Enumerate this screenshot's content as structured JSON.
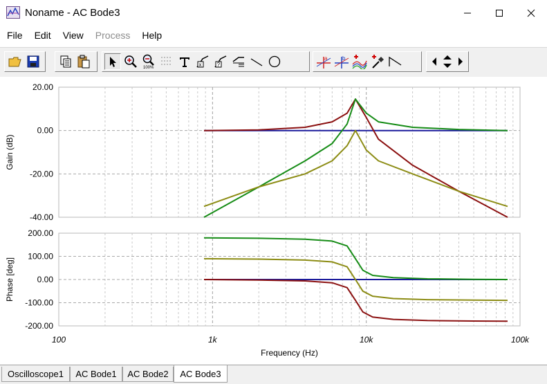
{
  "window": {
    "title": "Noname - AC Bode3"
  },
  "menu": [
    {
      "label": "File",
      "enabled": true
    },
    {
      "label": "Edit",
      "enabled": true
    },
    {
      "label": "View",
      "enabled": true
    },
    {
      "label": "Process",
      "enabled": false
    },
    {
      "label": "Help",
      "enabled": true
    }
  ],
  "toolbar": {
    "groups": [
      [
        "open-icon",
        "save-icon"
      ],
      [
        "copy-icon",
        "paste-icon"
      ],
      [
        "pointer-icon",
        "zoom-in-icon",
        "zoom-100-icon",
        "grid-icon",
        "text-icon",
        "label-a-icon",
        "label-b-icon",
        "label-c-icon",
        "line-icon",
        "circle-icon"
      ],
      [
        "cursor-a-icon",
        "cursor-b-icon",
        "add-curve-icon",
        "add-marker-icon",
        "slope-icon"
      ],
      [
        "scroll-left-icon",
        "scroll-updown-icon",
        "scroll-right-icon"
      ]
    ]
  },
  "colors": {
    "blue": "#1a1a9c",
    "red": "#8b1010",
    "green": "#168c16",
    "olive": "#8c8c14"
  },
  "chart_data": [
    {
      "type": "line",
      "ylabel": "Gain (dB)",
      "xscale": "log",
      "xlim": [
        100,
        100000
      ],
      "ylim": [
        -40,
        20
      ],
      "yticks": [
        "20.00",
        "0.00",
        "-20.00",
        "-40.00"
      ],
      "grid": true,
      "series": [
        {
          "color": "#1a1a9c",
          "x": [
            880,
            83000
          ],
          "y": [
            0,
            0
          ]
        },
        {
          "color": "#8b1010",
          "x": [
            880,
            2000,
            4000,
            6000,
            7500,
            8500,
            10000,
            12000,
            20000,
            40000,
            83000
          ],
          "y": [
            0,
            0.3,
            1.5,
            4,
            8,
            14.5,
            6,
            -4,
            -16,
            -28,
            -40
          ]
        },
        {
          "color": "#168c16",
          "x": [
            880,
            2000,
            4000,
            6000,
            7500,
            8500,
            10000,
            12000,
            20000,
            40000,
            83000
          ],
          "y": [
            -40,
            -26,
            -14,
            -6,
            3,
            14.5,
            8,
            4,
            1.5,
            0.5,
            0
          ]
        },
        {
          "color": "#8c8c14",
          "x": [
            880,
            2000,
            4000,
            6000,
            7500,
            8500,
            10000,
            12000,
            20000,
            40000,
            83000
          ],
          "y": [
            -35,
            -26,
            -20,
            -14,
            -7,
            0,
            -9,
            -14,
            -20,
            -28,
            -35
          ]
        }
      ]
    },
    {
      "type": "line",
      "xlabel": "Frequency (Hz)",
      "ylabel": "Phase [deg]",
      "xscale": "log",
      "xlim": [
        100,
        100000
      ],
      "ylim": [
        -200,
        200
      ],
      "yticks": [
        "200.00",
        "100.00",
        "0.00",
        "-100.00",
        "-200.00"
      ],
      "xticks": [
        {
          "v": 100,
          "label": "100"
        },
        {
          "v": 1000,
          "label": "1k"
        },
        {
          "v": 10000,
          "label": "10k"
        },
        {
          "v": 100000,
          "label": "100k"
        }
      ],
      "grid": true,
      "series": [
        {
          "color": "#1a1a9c",
          "x": [
            880,
            83000
          ],
          "y": [
            0,
            0
          ]
        },
        {
          "color": "#8b1010",
          "x": [
            880,
            2000,
            4000,
            6000,
            7500,
            8500,
            9500,
            11000,
            15000,
            25000,
            50000,
            83000
          ],
          "y": [
            0,
            -2,
            -6,
            -14,
            -35,
            -90,
            -140,
            -162,
            -172,
            -177,
            -179,
            -180
          ]
        },
        {
          "color": "#168c16",
          "x": [
            880,
            2000,
            4000,
            6000,
            7500,
            8500,
            9500,
            11000,
            15000,
            25000,
            50000,
            83000
          ],
          "y": [
            180,
            178,
            174,
            166,
            145,
            90,
            40,
            18,
            8,
            3,
            1,
            0
          ]
        },
        {
          "color": "#8c8c14",
          "x": [
            880,
            2000,
            4000,
            6000,
            7500,
            8500,
            9500,
            11000,
            15000,
            25000,
            50000,
            83000
          ],
          "y": [
            90,
            88,
            84,
            76,
            55,
            0,
            -50,
            -72,
            -82,
            -87,
            -89,
            -90
          ]
        }
      ]
    }
  ],
  "tabs": [
    {
      "label": "Oscilloscope1",
      "active": false
    },
    {
      "label": "AC Bode1",
      "active": false
    },
    {
      "label": "AC Bode2",
      "active": false
    },
    {
      "label": "AC Bode3",
      "active": true
    }
  ]
}
